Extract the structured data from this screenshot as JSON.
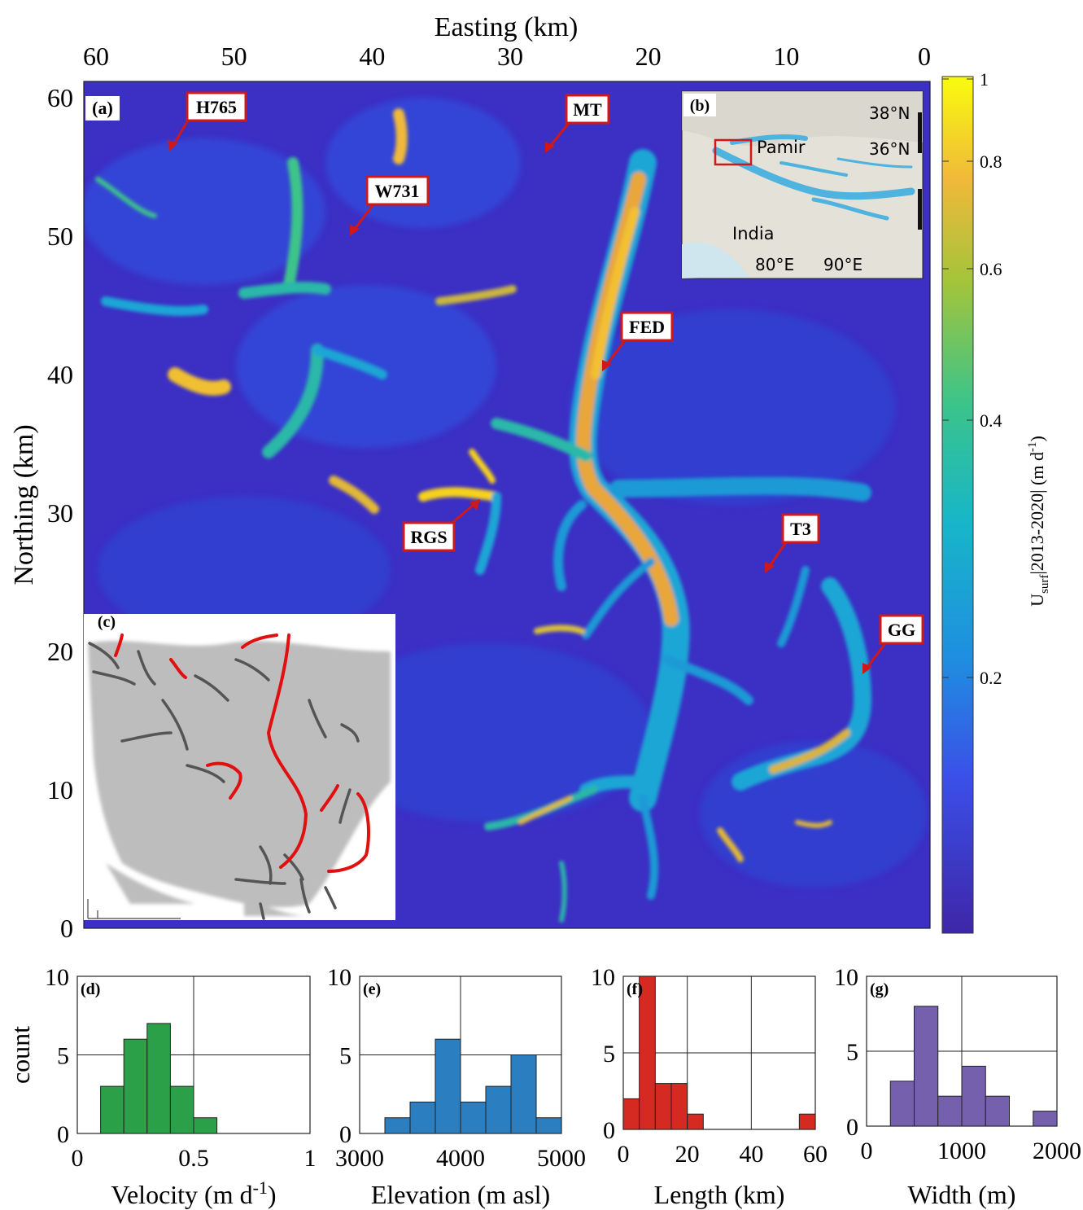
{
  "colors": {
    "background": "#ffffff",
    "map_base": "#3b2fc4",
    "callout_border": "#d01818",
    "velocity_low": "#3e26a8",
    "velocity_mid": "#1ea0d8",
    "velocity_green": "#3cc48a",
    "velocity_high": "#f6d21e",
    "velocity_max": "#f9fb0e",
    "hist_d": "#2ca048",
    "hist_e": "#2b7ec0",
    "hist_f": "#d42a22",
    "hist_g": "#7460ac",
    "inset_c_terrain": "#bdbdbd",
    "inset_c_red": "#e01010",
    "inset_c_gray": "#555555",
    "inset_b_glacier": "#4eb3de",
    "inset_b_land": "#e3e1d8"
  },
  "map": {
    "panel_letter": "(a)",
    "xlabel": "Easting (km)",
    "ylabel": "Northing (km)",
    "xticks": [
      "60",
      "50",
      "40",
      "30",
      "20",
      "10",
      "0"
    ],
    "yticks": [
      "0",
      "10",
      "20",
      "30",
      "40",
      "50",
      "60"
    ],
    "callouts": [
      "H765",
      "MT",
      "W731",
      "FED",
      "RGS",
      "T3",
      "GG"
    ]
  },
  "colorbar": {
    "ticks": [
      "0.2",
      "0.4",
      "0.6",
      "0.8",
      "1"
    ],
    "label_main": "U",
    "label_sub": "surf",
    "label_rest": "|2013-2020| (m d",
    "label_sup": "-1",
    "label_end": ")"
  },
  "inset_b": {
    "panel_letter": "(b)",
    "labels": [
      "38°N",
      "36°N",
      "Pamir",
      "India",
      "80°E",
      "90°E"
    ]
  },
  "inset_c": {
    "panel_letter": "(c)"
  },
  "chart_data": [
    {
      "type": "bar",
      "panel": "(d)",
      "xlabel": "Velocity (m d",
      "xlabel_sup": "-1",
      "xlabel_end": ")",
      "ylabel": "count",
      "xlim": [
        0,
        1
      ],
      "ylim": [
        0,
        10
      ],
      "xticks": [
        "0",
        "0.5",
        "1"
      ],
      "yticks": [
        "0",
        "5",
        "10"
      ],
      "bin_edges": [
        0.1,
        0.2,
        0.3,
        0.4,
        0.5,
        0.6
      ],
      "counts": [
        3,
        6,
        7,
        3,
        1
      ]
    },
    {
      "type": "bar",
      "panel": "(e)",
      "xlabel": "Elevation (m asl)",
      "xlim": [
        3000,
        5000
      ],
      "ylim": [
        0,
        10
      ],
      "xticks": [
        "3000",
        "4000",
        "5000"
      ],
      "yticks": [
        "0",
        "5",
        "10"
      ],
      "bin_edges": [
        3250,
        3500,
        3750,
        4000,
        4250,
        4500,
        4750,
        5000
      ],
      "counts": [
        1,
        2,
        6,
        2,
        3,
        5,
        1
      ]
    },
    {
      "type": "bar",
      "panel": "(f)",
      "xlabel": "Length (km)",
      "xlim": [
        0,
        60
      ],
      "ylim": [
        0,
        10
      ],
      "xticks": [
        "0",
        "20",
        "40",
        "60"
      ],
      "yticks": [
        "0",
        "5",
        "10"
      ],
      "bin_edges": [
        0,
        5,
        10,
        15,
        20,
        25,
        55,
        60
      ],
      "counts": [
        2,
        10,
        3,
        3,
        1,
        0,
        1
      ]
    },
    {
      "type": "bar",
      "panel": "(g)",
      "xlabel": "Width (m)",
      "xlim": [
        0,
        2000
      ],
      "ylim": [
        0,
        10
      ],
      "xticks": [
        "0",
        "1000",
        "2000"
      ],
      "yticks": [
        "0",
        "5",
        "10"
      ],
      "bin_edges": [
        250,
        500,
        750,
        1000,
        1250,
        1500,
        1750,
        2000
      ],
      "counts": [
        3,
        8,
        2,
        4,
        2,
        0,
        1
      ]
    }
  ]
}
